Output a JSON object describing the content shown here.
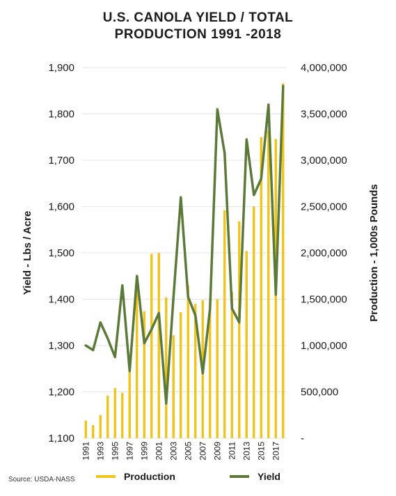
{
  "header": {
    "title_line1": "U.S. CANOLA YIELD / TOTAL",
    "title_line2": "PRODUCTION 1991 -2018"
  },
  "source": "Source: USDA-NASS",
  "colors": {
    "production": "#F0C419",
    "yield": "#5B7A3A",
    "grid": "#e3e3e3",
    "text": "#1a1a1a"
  },
  "chart_data": {
    "type": "bar+line",
    "title": "U.S. CANOLA YIELD / TOTAL PRODUCTION 1991 -2018",
    "x": [
      1991,
      1992,
      1993,
      1994,
      1995,
      1996,
      1997,
      1998,
      1999,
      2000,
      2001,
      2002,
      2003,
      2004,
      2005,
      2006,
      2007,
      2008,
      2009,
      2010,
      2011,
      2012,
      2013,
      2014,
      2015,
      2016,
      2017,
      2018
    ],
    "x_tick_labels": [
      "1991",
      "1993",
      "1995",
      "1997",
      "1999",
      "2001",
      "2003",
      "2005",
      "2007",
      "2009",
      "2011",
      "2013",
      "2015",
      "2017"
    ],
    "left_axis": {
      "label": "Yield - Lbs / Acre",
      "range": [
        1100,
        1900
      ],
      "ticks": [
        "1,100",
        "1,200",
        "1,300",
        "1,400",
        "1,500",
        "1,600",
        "1,700",
        "1,800",
        "1,900"
      ]
    },
    "right_axis": {
      "label": "Production - 1,000s Pounds",
      "range": [
        0,
        4000000
      ],
      "ticks": [
        "-",
        "500,000",
        "1,000,000",
        "1,500,000",
        "2,000,000",
        "2,500,000",
        "3,000,000",
        "3,500,000",
        "4,000,000"
      ]
    },
    "series": [
      {
        "name": "Production",
        "type": "bar",
        "axis": "right",
        "values": [
          190000,
          140000,
          250000,
          460000,
          540000,
          490000,
          720000,
          1610000,
          1370000,
          1990000,
          2000000,
          1520000,
          1110000,
          1360000,
          1650000,
          1450000,
          1490000,
          1460000,
          1500000,
          2460000,
          1580000,
          2340000,
          2020000,
          2500000,
          3250000,
          3320000,
          3230000,
          3830000
        ]
      },
      {
        "name": "Yield",
        "type": "line",
        "axis": "left",
        "values": [
          1300,
          1290,
          1350,
          1315,
          1275,
          1430,
          1245,
          1450,
          1305,
          1335,
          1370,
          1175,
          1405,
          1620,
          1405,
          1365,
          1240,
          1380,
          1810,
          1715,
          1380,
          1350,
          1745,
          1625,
          1660,
          1820,
          1410,
          1860
        ]
      }
    ],
    "legend": {
      "position": "bottom",
      "entries": [
        "Production",
        "Yield"
      ]
    },
    "grid": true
  }
}
